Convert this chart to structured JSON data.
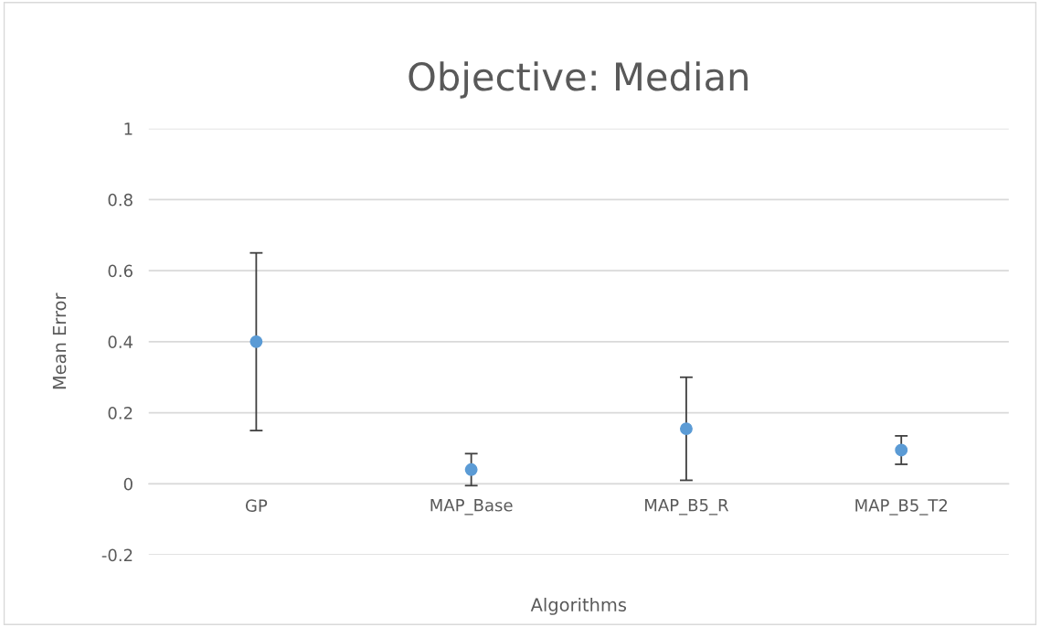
{
  "chart_data": {
    "type": "scatter",
    "title": "Objective: Median",
    "xlabel": "Algorithms",
    "ylabel": "Mean Error",
    "categories": [
      "GP",
      "MAP_Base",
      "MAP_B5_R",
      "MAP_B5_T2"
    ],
    "values": [
      0.4,
      0.04,
      0.155,
      0.095
    ],
    "errors": [
      0.25,
      0.045,
      0.145,
      0.04
    ],
    "color": "#5b9bd5",
    "marker": "circle",
    "ylim": [
      -0.2,
      1
    ],
    "yticks": [
      -0.2,
      0,
      0.2,
      0.4,
      0.6,
      0.8,
      1
    ],
    "grid": "y",
    "legend": false
  }
}
